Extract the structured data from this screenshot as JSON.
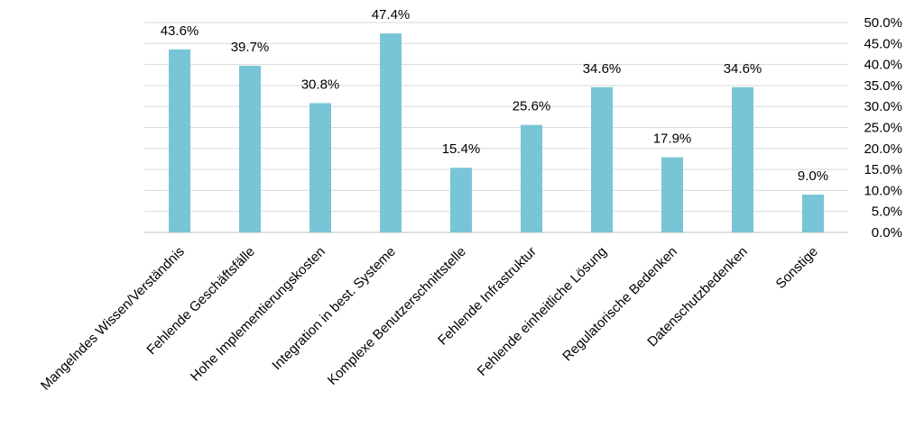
{
  "chart_data": {
    "type": "bar",
    "categories": [
      "Mangelndes Wissen/Verständnis",
      "Fehlende Geschäftsfälle",
      "Hohe Implementierungskosten",
      "Integration in best. Systeme",
      "Komplexe Benutzerschnittstelle",
      "Fehlende Infrastruktur",
      "Fehlende einheitliche Lösung",
      "Regulatorische Bedenken",
      "Datenschutzbedenken",
      "Sonstige"
    ],
    "values": [
      43.6,
      39.7,
      30.8,
      47.4,
      15.4,
      25.6,
      34.6,
      17.9,
      34.6,
      9.0
    ],
    "data_labels": [
      "43.6%",
      "39.7%",
      "30.8%",
      "47.4%",
      "15.4%",
      "25.6%",
      "34.6%",
      "17.9%",
      "34.6%",
      "9.0%"
    ],
    "yticks": [
      0,
      5,
      10,
      15,
      20,
      25,
      30,
      35,
      40,
      45,
      50
    ],
    "ytick_labels": [
      "0.0%",
      "5.0%",
      "10.0%",
      "15.0%",
      "20.0%",
      "25.0%",
      "30.0%",
      "35.0%",
      "40.0%",
      "45.0%",
      "50.0%"
    ],
    "ylim": [
      0,
      50
    ],
    "y_axis_position": "right",
    "grid": true,
    "bar_color": "#78c5d8",
    "title": "",
    "xlabel": "",
    "ylabel": ""
  }
}
